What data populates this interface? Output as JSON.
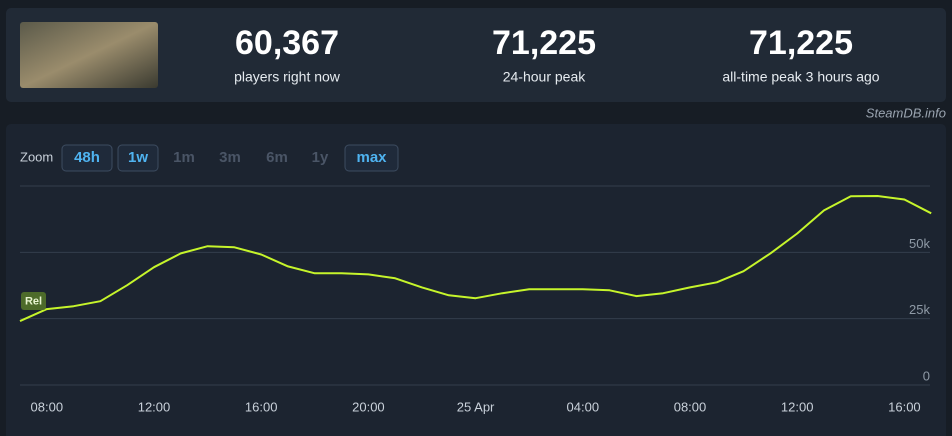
{
  "header": {
    "stats": [
      {
        "value": "60,367",
        "label": "players right now"
      },
      {
        "value": "71,225",
        "label": "24-hour peak"
      },
      {
        "value": "71,225",
        "label": "all-time peak 3 hours ago"
      }
    ],
    "source": "SteamDB.info"
  },
  "zoom": {
    "label": "Zoom",
    "buttons": [
      "48h",
      "1w",
      "1m",
      "3m",
      "6m",
      "1y",
      "max"
    ]
  },
  "chart_data": {
    "type": "line",
    "categories": [
      null,
      "08:00",
      null,
      null,
      null,
      "12:00",
      null,
      null,
      null,
      "16:00",
      null,
      null,
      null,
      "20:00",
      null,
      null,
      null,
      "25 Apr",
      null,
      null,
      null,
      "04:00",
      null,
      null,
      null,
      "08:00",
      null,
      null,
      null,
      "12:00",
      null,
      null,
      null,
      "16:00",
      null
    ],
    "series": [
      {
        "color": "#c6f52b",
        "values": [
          24100,
          28600,
          29700,
          31600,
          37600,
          44400,
          49600,
          52300,
          51900,
          49200,
          44700,
          42100,
          42100,
          41700,
          40200,
          36800,
          33800,
          32700,
          34600,
          36100,
          36100,
          36100,
          35700,
          33500,
          34600,
          36800,
          38700,
          42900,
          49600,
          57100,
          65800,
          71100,
          71225,
          69900,
          64700
        ]
      }
    ],
    "ylim": [
      0,
      75000
    ],
    "yticks": [
      0,
      {
        "value": 25000,
        "label": "25k"
      },
      {
        "value": 50000,
        "label": "50k"
      }
    ],
    "grid": true,
    "marker_label": "Rel"
  }
}
